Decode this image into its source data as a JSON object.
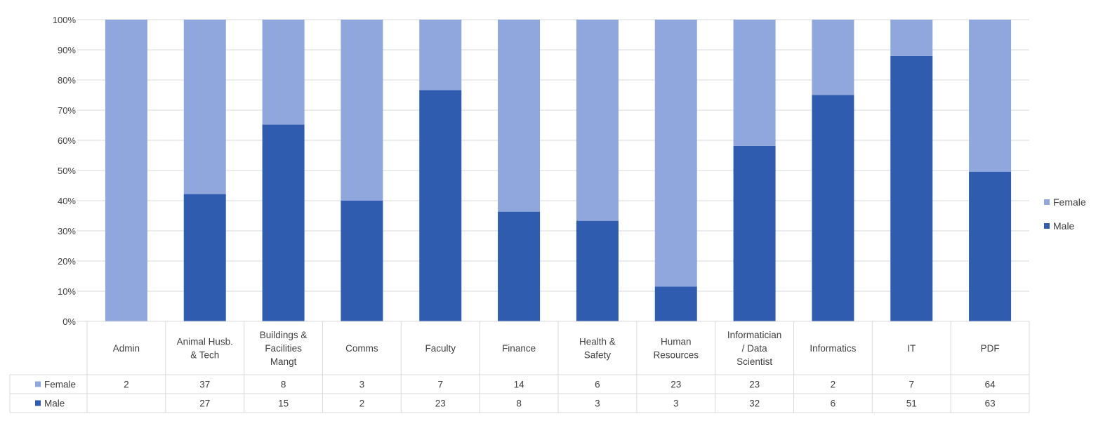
{
  "chart_data": {
    "type": "bar",
    "stacked": "percent",
    "categories": [
      "Admin",
      "Animal Husb. & Tech",
      "Buildings & Facilities Mangt",
      "Comms",
      "Faculty",
      "Finance",
      "Health & Safety",
      "Human Resources",
      "Informatician / Data Scientist",
      "Informatics",
      "IT",
      "PDF"
    ],
    "category_lines": [
      [
        "Admin"
      ],
      [
        "Animal Husb.",
        "& Tech"
      ],
      [
        "Buildings &",
        "Facilities",
        "Mangt"
      ],
      [
        "Comms"
      ],
      [
        "Faculty"
      ],
      [
        "Finance"
      ],
      [
        "Health &",
        "Safety"
      ],
      [
        "Human",
        "Resources"
      ],
      [
        "Informatician",
        "/ Data",
        "Scientist"
      ],
      [
        "Informatics"
      ],
      [
        "IT"
      ],
      [
        "PDF"
      ]
    ],
    "series": [
      {
        "name": "Male",
        "color": "#2f5cae",
        "values": [
          null,
          27,
          15,
          2,
          23,
          8,
          3,
          3,
          32,
          6,
          51,
          63
        ]
      },
      {
        "name": "Female",
        "color": "#8fa7dc",
        "values": [
          2,
          37,
          8,
          3,
          7,
          14,
          6,
          23,
          23,
          2,
          7,
          64
        ]
      }
    ],
    "y_ticks": [
      "0%",
      "10%",
      "20%",
      "30%",
      "40%",
      "50%",
      "60%",
      "70%",
      "80%",
      "90%",
      "100%"
    ],
    "ylim": [
      0,
      100
    ],
    "grid": true,
    "legend": {
      "position": "right",
      "entries": [
        "Female",
        "Male"
      ]
    },
    "data_table": {
      "rows": [
        "Female",
        "Male"
      ]
    }
  }
}
